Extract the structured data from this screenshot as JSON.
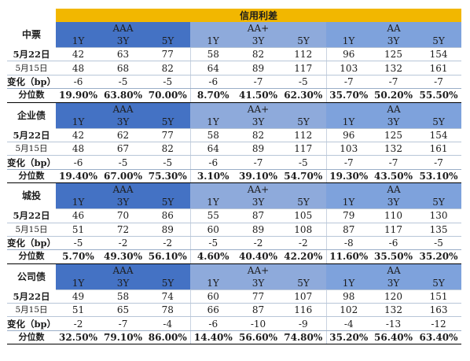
{
  "title": "信用利差",
  "row_labels": {
    "change": "变化（bp）",
    "percentile": "分位数"
  },
  "sections": [
    {
      "name": "中票",
      "groups": [
        {
          "label": "AAA",
          "tenors": [
            "1Y",
            "3Y",
            "5Y"
          ]
        },
        {
          "label": "AA+",
          "tenors": [
            "1Y",
            "3Y",
            "5Y"
          ]
        },
        {
          "label": "AA",
          "tenors": [
            "1Y",
            "3Y",
            "5Y"
          ]
        }
      ],
      "date1": "5月22日",
      "date2": "5月15日",
      "values_date1": [
        "42",
        "63",
        "77",
        "58",
        "82",
        "112",
        "96",
        "125",
        "154"
      ],
      "values_date2": [
        "48",
        "68",
        "82",
        "64",
        "89",
        "117",
        "103",
        "132",
        "161"
      ],
      "change": [
        "-6",
        "-5",
        "-5",
        "-6",
        "-7",
        "-5",
        "-7",
        "-7",
        "-7"
      ],
      "percentile": [
        "19.90%",
        "63.80%",
        "70.00%",
        "8.70%",
        "41.50%",
        "62.30%",
        "35.70%",
        "50.20%",
        "55.50%"
      ]
    },
    {
      "name": "企业债",
      "groups": [
        {
          "label": "AAA",
          "tenors": [
            "1Y",
            "3Y",
            "5Y"
          ]
        },
        {
          "label": "AA+",
          "tenors": [
            "1Y",
            "3Y",
            "5Y"
          ]
        },
        {
          "label": "AA",
          "tenors": [
            "1Y",
            "3Y",
            "5Y"
          ]
        }
      ],
      "date1": "5月22日",
      "date2": "5月15日",
      "values_date1": [
        "42",
        "62",
        "77",
        "58",
        "82",
        "112",
        "96",
        "125",
        "154"
      ],
      "values_date2": [
        "48",
        "67",
        "82",
        "64",
        "89",
        "117",
        "103",
        "132",
        "161"
      ],
      "change": [
        "-6",
        "-5",
        "-5",
        "-6",
        "-7",
        "-5",
        "-7",
        "-7",
        "-7"
      ],
      "percentile": [
        "19.40%",
        "67.00%",
        "75.30%",
        "3.10%",
        "39.10%",
        "54.70%",
        "19.30%",
        "43.50%",
        "53.10%"
      ]
    },
    {
      "name": "城投",
      "groups": [
        {
          "label": "AAA",
          "tenors": [
            "1Y",
            "3Y",
            "5Y"
          ]
        },
        {
          "label": "AA+",
          "tenors": [
            "1Y",
            "3Y",
            "5Y"
          ]
        },
        {
          "label": "AA",
          "tenors": [
            "1Y",
            "3Y",
            "5Y"
          ]
        }
      ],
      "date1": "5月22日",
      "date2": "5月15日",
      "values_date1": [
        "46",
        "70",
        "86",
        "55",
        "87",
        "105",
        "79",
        "110",
        "130"
      ],
      "values_date2": [
        "51",
        "72",
        "89",
        "60",
        "89",
        "108",
        "87",
        "117",
        "135"
      ],
      "change": [
        "-5",
        "-2",
        "-2",
        "-5",
        "-2",
        "-2",
        "-8",
        "-6",
        "-5"
      ],
      "percentile": [
        "5.70%",
        "49.30%",
        "56.10%",
        "4.60%",
        "40.40%",
        "42.20%",
        "11.60%",
        "35.50%",
        "35.20%"
      ]
    },
    {
      "name": "公司债",
      "groups": [
        {
          "label": "AAA",
          "tenors": [
            "1Y",
            "3Y",
            "5Y"
          ]
        },
        {
          "label": "AA+",
          "tenors": [
            "1Y",
            "3Y",
            "5Y"
          ]
        },
        {
          "label": "AA",
          "tenors": [
            "1Y",
            "3Y",
            "5Y"
          ]
        }
      ],
      "date1": "5月22日",
      "date2": "5月15日",
      "values_date1": [
        "49",
        "58",
        "74",
        "60",
        "77",
        "107",
        "98",
        "120",
        "151"
      ],
      "values_date2": [
        "51",
        "65",
        "78",
        "66",
        "87",
        "116",
        "102",
        "132",
        "163"
      ],
      "change": [
        "-2",
        "-7",
        "-4",
        "-6",
        "-10",
        "-9",
        "-4",
        "-13",
        "-12"
      ],
      "percentile": [
        "32.50%",
        "79.10%",
        "86.00%",
        "14.40%",
        "56.60%",
        "74.80%",
        "35.20%",
        "56.40%",
        "63.40%"
      ]
    }
  ]
}
